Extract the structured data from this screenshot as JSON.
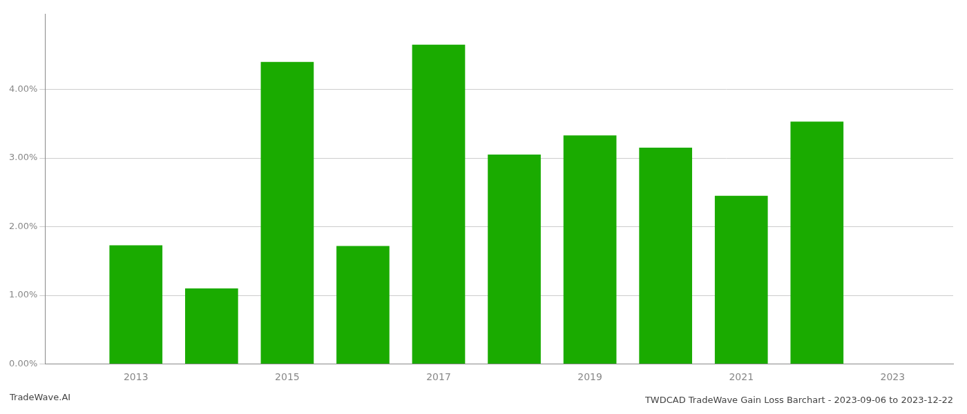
{
  "chart_data": {
    "type": "bar",
    "title": "TWDCAD TradeWave Gain Loss Barchart - 2023-09-06 to 2023-12-22",
    "annotations": [
      "TradeWave.AI"
    ],
    "x": [
      2013,
      2014,
      2015,
      2016,
      2017,
      2018,
      2019,
      2020,
      2021,
      2022
    ],
    "values": [
      0.0173,
      0.011,
      0.044,
      0.0172,
      0.0465,
      0.0305,
      0.0333,
      0.0315,
      0.0245,
      0.0353
    ],
    "color": "#1aab00",
    "xlim": [
      2011.8,
      2023.8
    ],
    "xticks": [
      2013,
      2015,
      2017,
      2019,
      2021,
      2023
    ],
    "ylim": [
      0.0,
      0.051
    ],
    "yticks": [
      {
        "value": 0.0,
        "label": "0.00%"
      },
      {
        "value": 0.01,
        "label": "1.00%"
      },
      {
        "value": 0.02,
        "label": "2.00%"
      },
      {
        "value": 0.03,
        "label": "3.00%"
      },
      {
        "value": 0.04,
        "label": "4.00%"
      }
    ],
    "grid": true
  }
}
